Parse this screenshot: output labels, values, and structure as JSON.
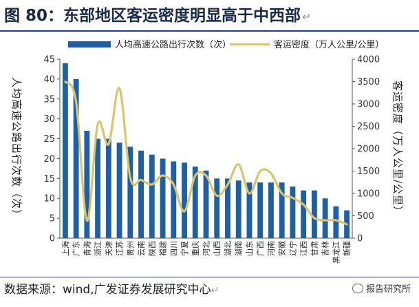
{
  "header": {
    "title": "图 80：东部地区客运密度明显高于中西部",
    "return_mark": "↵"
  },
  "footer": {
    "source": "数据来源：wind,广发证券发展研究中心",
    "return_mark": "↵",
    "watermark": "报告研究所"
  },
  "colors": {
    "bar": "#1f5fa3",
    "line": "#d9c56a",
    "rule": "#1d3f86"
  },
  "chart_data": {
    "type": "bar",
    "categories": [
      "上海",
      "广东",
      "青海",
      "浙江",
      "天津",
      "江苏",
      "贵州",
      "云南",
      "陕西",
      "福建",
      "四川",
      "宁夏",
      "重庆",
      "河北",
      "山西",
      "湖北",
      "湖南",
      "山东",
      "广西",
      "河南",
      "安徽",
      "辽宁",
      "江西",
      "甘肃",
      "吉林",
      "黑龙江",
      "新疆"
    ],
    "series": [
      {
        "name": "人均高速公路出行次数（次）",
        "type": "bar",
        "axis": "left",
        "values": [
          44,
          40,
          27,
          25,
          25,
          24,
          23,
          22,
          21,
          20,
          19.3,
          19,
          18,
          17,
          15,
          15,
          14.5,
          14,
          14,
          14,
          14,
          13,
          12,
          12,
          10,
          8,
          7
        ]
      },
      {
        "name": "客运密度（万人公里/公里）",
        "type": "line",
        "axis": "right",
        "values": [
          3500,
          3050,
          390,
          2550,
          2100,
          3350,
          1350,
          1300,
          1200,
          1400,
          1200,
          600,
          1400,
          1400,
          950,
          1200,
          1650,
          1000,
          1500,
          1450,
          1000,
          900,
          750,
          450,
          400,
          400,
          310
        ]
      }
    ],
    "ylabel": "人均高速公路出行次数（次）",
    "y2label": "客运密度（万人公里/公里）",
    "ylim": [
      0,
      45
    ],
    "yticks": [
      0,
      5,
      10,
      15,
      20,
      25,
      30,
      35,
      40,
      45
    ],
    "y2lim": [
      0,
      4000
    ],
    "y2ticks": [
      0,
      500,
      1000,
      1500,
      2000,
      2500,
      3000,
      3500,
      4000
    ],
    "grid": false,
    "legend_position": "top"
  }
}
